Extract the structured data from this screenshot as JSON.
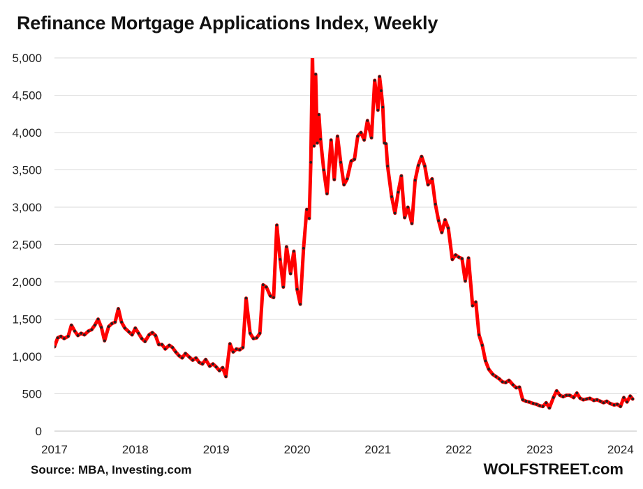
{
  "chart_data": {
    "type": "line",
    "title": "Refinance Mortgage Applications Index, Weekly",
    "source": "Source: MBA, Investing.com",
    "brand": "WOLFSTREET.com",
    "xlabel": "",
    "ylabel": "",
    "xlim": [
      2017,
      2024.2
    ],
    "ylim": [
      0,
      5000
    ],
    "x_ticks": [
      2017,
      2018,
      2019,
      2020,
      2021,
      2022,
      2023,
      2024
    ],
    "x_tick_labels": [
      "2017",
      "2018",
      "2019",
      "2020",
      "2021",
      "2022",
      "2023",
      "2024"
    ],
    "y_ticks": [
      0,
      500,
      1000,
      1500,
      2000,
      2500,
      3000,
      3500,
      4000,
      4500,
      5000
    ],
    "y_tick_labels": [
      "0",
      "500",
      "1,000",
      "1,500",
      "2,000",
      "2,500",
      "3,000",
      "3,500",
      "4,000",
      "4,500",
      "5,000"
    ],
    "grid": "horizontal",
    "line_color": "#ff0000",
    "marker_color": "#222222",
    "series": [
      {
        "name": "",
        "x": [
          2017.0,
          2017.04,
          2017.08,
          2017.12,
          2017.17,
          2017.21,
          2017.25,
          2017.29,
          2017.33,
          2017.37,
          2017.42,
          2017.46,
          2017.5,
          2017.54,
          2017.58,
          2017.62,
          2017.67,
          2017.71,
          2017.75,
          2017.79,
          2017.83,
          2017.87,
          2017.92,
          2017.96,
          2018.0,
          2018.04,
          2018.08,
          2018.12,
          2018.17,
          2018.21,
          2018.25,
          2018.29,
          2018.33,
          2018.37,
          2018.42,
          2018.46,
          2018.5,
          2018.54,
          2018.58,
          2018.62,
          2018.67,
          2018.71,
          2018.75,
          2018.79,
          2018.83,
          2018.87,
          2018.92,
          2018.96,
          2019.0,
          2019.04,
          2019.08,
          2019.12,
          2019.17,
          2019.21,
          2019.25,
          2019.29,
          2019.33,
          2019.37,
          2019.42,
          2019.46,
          2019.5,
          2019.54,
          2019.58,
          2019.62,
          2019.67,
          2019.71,
          2019.75,
          2019.79,
          2019.83,
          2019.87,
          2019.92,
          2019.96,
          2020.0,
          2020.04,
          2020.08,
          2020.12,
          2020.15,
          2020.17,
          2020.19,
          2020.21,
          2020.23,
          2020.25,
          2020.27,
          2020.29,
          2020.33,
          2020.37,
          2020.42,
          2020.46,
          2020.5,
          2020.54,
          2020.58,
          2020.62,
          2020.67,
          2020.71,
          2020.75,
          2020.79,
          2020.83,
          2020.87,
          2020.92,
          2020.96,
          2021.0,
          2021.02,
          2021.04,
          2021.06,
          2021.08,
          2021.1,
          2021.12,
          2021.17,
          2021.21,
          2021.25,
          2021.29,
          2021.33,
          2021.37,
          2021.42,
          2021.46,
          2021.5,
          2021.54,
          2021.58,
          2021.62,
          2021.67,
          2021.71,
          2021.75,
          2021.79,
          2021.83,
          2021.87,
          2021.92,
          2021.96,
          2022.0,
          2022.04,
          2022.08,
          2022.12,
          2022.17,
          2022.21,
          2022.25,
          2022.29,
          2022.33,
          2022.37,
          2022.42,
          2022.46,
          2022.5,
          2022.54,
          2022.58,
          2022.62,
          2022.67,
          2022.71,
          2022.75,
          2022.79,
          2022.83,
          2022.87,
          2022.92,
          2022.96,
          2023.0,
          2023.04,
          2023.08,
          2023.12,
          2023.17,
          2023.21,
          2023.25,
          2023.29,
          2023.33,
          2023.37,
          2023.42,
          2023.46,
          2023.5,
          2023.54,
          2023.58,
          2023.62,
          2023.67,
          2023.71,
          2023.75,
          2023.79,
          2023.83,
          2023.87,
          2023.92,
          2023.96,
          2024.0,
          2024.04,
          2024.08,
          2024.12,
          2024.15
        ],
        "y": [
          1130,
          1250,
          1270,
          1240,
          1270,
          1420,
          1340,
          1280,
          1310,
          1290,
          1340,
          1360,
          1420,
          1500,
          1390,
          1210,
          1400,
          1440,
          1460,
          1640,
          1460,
          1380,
          1330,
          1290,
          1380,
          1310,
          1240,
          1200,
          1290,
          1320,
          1280,
          1160,
          1160,
          1100,
          1150,
          1120,
          1060,
          1010,
          980,
          1040,
          990,
          950,
          980,
          920,
          900,
          960,
          870,
          900,
          860,
          810,
          850,
          730,
          1170,
          1060,
          1100,
          1090,
          1120,
          1780,
          1310,
          1240,
          1250,
          1310,
          1960,
          1930,
          1810,
          1790,
          2760,
          2300,
          1930,
          2470,
          2110,
          2410,
          1900,
          1700,
          2450,
          2970,
          2850,
          3600,
          5070,
          3820,
          4780,
          3860,
          4240,
          3910,
          3500,
          3180,
          3900,
          3370,
          3950,
          3600,
          3300,
          3380,
          3620,
          3640,
          3950,
          4000,
          3900,
          4160,
          3930,
          4700,
          4300,
          4750,
          4560,
          4340,
          3860,
          3850,
          3550,
          3140,
          2920,
          3200,
          3420,
          2860,
          3000,
          2780,
          3360,
          3560,
          3680,
          3550,
          3300,
          3380,
          3040,
          2820,
          2660,
          2830,
          2720,
          2300,
          2360,
          2330,
          2310,
          2010,
          2320,
          1680,
          1730,
          1290,
          1150,
          940,
          830,
          760,
          730,
          700,
          660,
          650,
          680,
          620,
          580,
          590,
          420,
          400,
          390,
          370,
          360,
          340,
          330,
          380,
          310,
          450,
          540,
          480,
          460,
          480,
          480,
          450,
          510,
          440,
          420,
          430,
          440,
          410,
          420,
          400,
          380,
          400,
          370,
          350,
          360,
          330,
          450,
          390,
          470,
          430
        ]
      }
    ]
  }
}
